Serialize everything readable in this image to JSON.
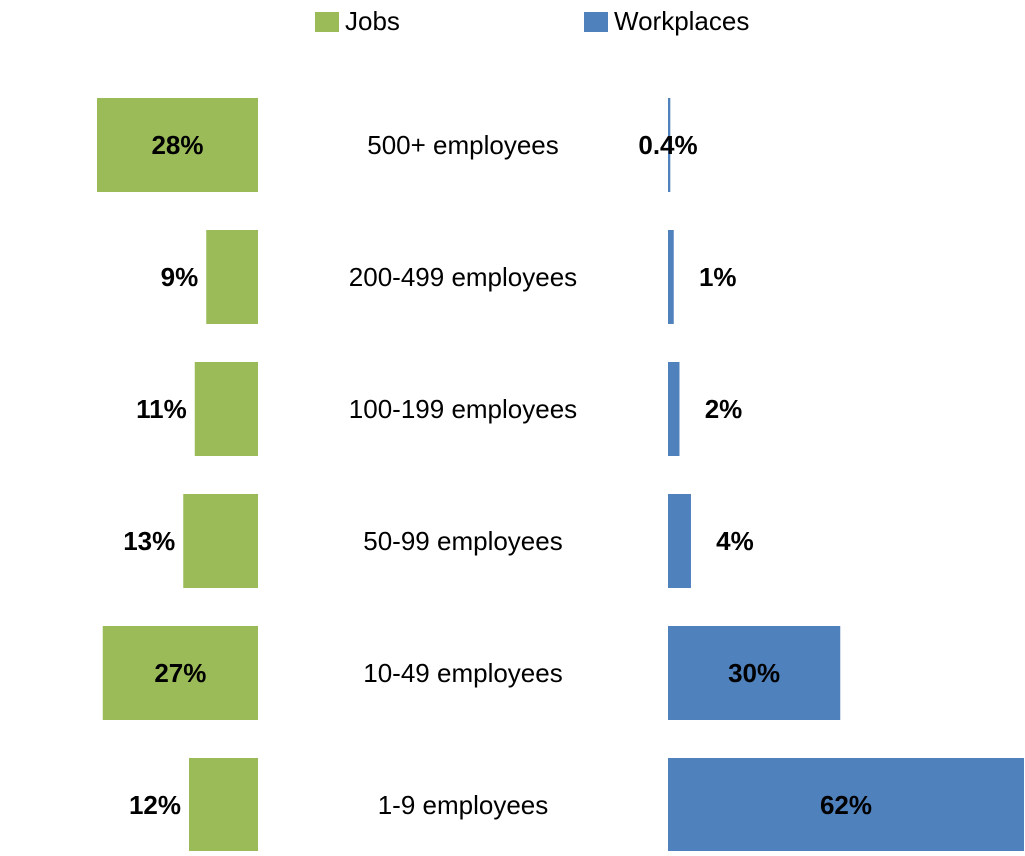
{
  "chart_data": {
    "type": "bar",
    "orientation": "horizontal",
    "layout": "butterfly",
    "categories": [
      "500+ employees",
      "200-499 employees",
      "100-199 employees",
      "50-99 employees",
      "10-49 employees",
      "1-9 employees"
    ],
    "series": [
      {
        "name": "Jobs",
        "color": "#9BBB59",
        "values": [
          28,
          9,
          11,
          13,
          27,
          12
        ],
        "labels": [
          "28%",
          "9%",
          "11%",
          "13%",
          "27%",
          "12%"
        ]
      },
      {
        "name": "Workplaces",
        "color": "#4F81BD",
        "values": [
          0.4,
          1,
          2,
          4,
          30,
          62
        ],
        "labels": [
          "0.4%",
          "1%",
          "2%",
          "4%",
          "30%",
          "62%"
        ]
      }
    ],
    "unit": "%",
    "legend_position": "top",
    "grid": false
  }
}
